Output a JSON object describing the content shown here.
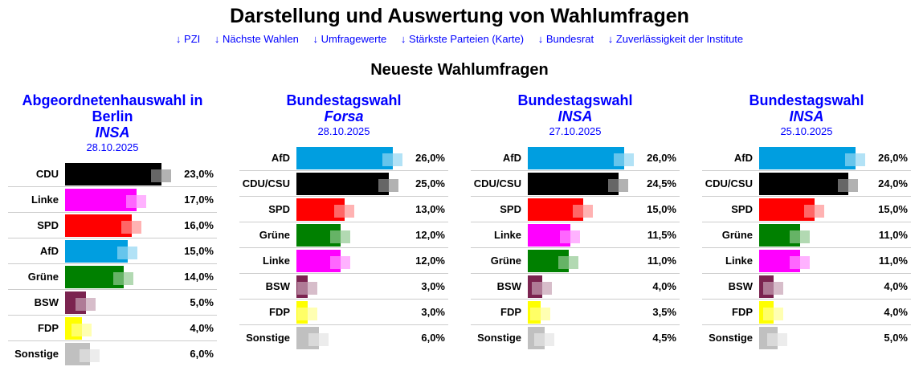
{
  "title": "Darstellung und Auswertung von Wahlumfragen",
  "nav": [
    "↓ PZI",
    "↓ Nächste Wahlen",
    "↓ Umfragewerte",
    "↓ Stärkste Parteien (Karte)",
    "↓ Bundesrat",
    "↓ Zuverlässigkeit der Institute"
  ],
  "subtitle": "Neueste Wahlumfragen",
  "colors": {
    "CDU": "#000000",
    "CDU/CSU": "#000000",
    "Linke": "#ff00ff",
    "SPD": "#ff0000",
    "AfD": "#009ee0",
    "Grüne": "#008000",
    "BSW": "#7b2450",
    "FDP": "#ffff00",
    "Sonstige": "#c0c0c0"
  },
  "polls": [
    {
      "election": "Abgeordnetenhauswahl in Berlin",
      "institute": "INSA",
      "date": "28.10.2025",
      "rows": [
        {
          "party": "CDU",
          "value": 23.0,
          "label": "23,0%"
        },
        {
          "party": "Linke",
          "value": 17.0,
          "label": "17,0%"
        },
        {
          "party": "SPD",
          "value": 16.0,
          "label": "16,0%"
        },
        {
          "party": "AfD",
          "value": 15.0,
          "label": "15,0%"
        },
        {
          "party": "Grüne",
          "value": 14.0,
          "label": "14,0%"
        },
        {
          "party": "BSW",
          "value": 5.0,
          "label": "5,0%"
        },
        {
          "party": "FDP",
          "value": 4.0,
          "label": "4,0%"
        },
        {
          "party": "Sonstige",
          "value": 6.0,
          "label": "6,0%"
        }
      ]
    },
    {
      "election": "Bundestagswahl",
      "institute": "Forsa",
      "date": "28.10.2025",
      "rows": [
        {
          "party": "AfD",
          "value": 26.0,
          "label": "26,0%"
        },
        {
          "party": "CDU/CSU",
          "value": 25.0,
          "label": "25,0%"
        },
        {
          "party": "SPD",
          "value": 13.0,
          "label": "13,0%"
        },
        {
          "party": "Grüne",
          "value": 12.0,
          "label": "12,0%"
        },
        {
          "party": "Linke",
          "value": 12.0,
          "label": "12,0%"
        },
        {
          "party": "BSW",
          "value": 3.0,
          "label": "3,0%"
        },
        {
          "party": "FDP",
          "value": 3.0,
          "label": "3,0%"
        },
        {
          "party": "Sonstige",
          "value": 6.0,
          "label": "6,0%"
        }
      ]
    },
    {
      "election": "Bundestagswahl",
      "institute": "INSA",
      "date": "27.10.2025",
      "rows": [
        {
          "party": "AfD",
          "value": 26.0,
          "label": "26,0%"
        },
        {
          "party": "CDU/CSU",
          "value": 24.5,
          "label": "24,5%"
        },
        {
          "party": "SPD",
          "value": 15.0,
          "label": "15,0%"
        },
        {
          "party": "Linke",
          "value": 11.5,
          "label": "11,5%"
        },
        {
          "party": "Grüne",
          "value": 11.0,
          "label": "11,0%"
        },
        {
          "party": "BSW",
          "value": 4.0,
          "label": "4,0%"
        },
        {
          "party": "FDP",
          "value": 3.5,
          "label": "3,5%"
        },
        {
          "party": "Sonstige",
          "value": 4.5,
          "label": "4,5%"
        }
      ]
    },
    {
      "election": "Bundestagswahl",
      "institute": "INSA",
      "date": "25.10.2025",
      "rows": [
        {
          "party": "AfD",
          "value": 26.0,
          "label": "26,0%"
        },
        {
          "party": "CDU/CSU",
          "value": 24.0,
          "label": "24,0%"
        },
        {
          "party": "SPD",
          "value": 15.0,
          "label": "15,0%"
        },
        {
          "party": "Grüne",
          "value": 11.0,
          "label": "11,0%"
        },
        {
          "party": "Linke",
          "value": 11.0,
          "label": "11,0%"
        },
        {
          "party": "BSW",
          "value": 4.0,
          "label": "4,0%"
        },
        {
          "party": "FDP",
          "value": 4.0,
          "label": "4,0%"
        },
        {
          "party": "Sonstige",
          "value": 5.0,
          "label": "5,0%"
        }
      ]
    }
  ]
}
